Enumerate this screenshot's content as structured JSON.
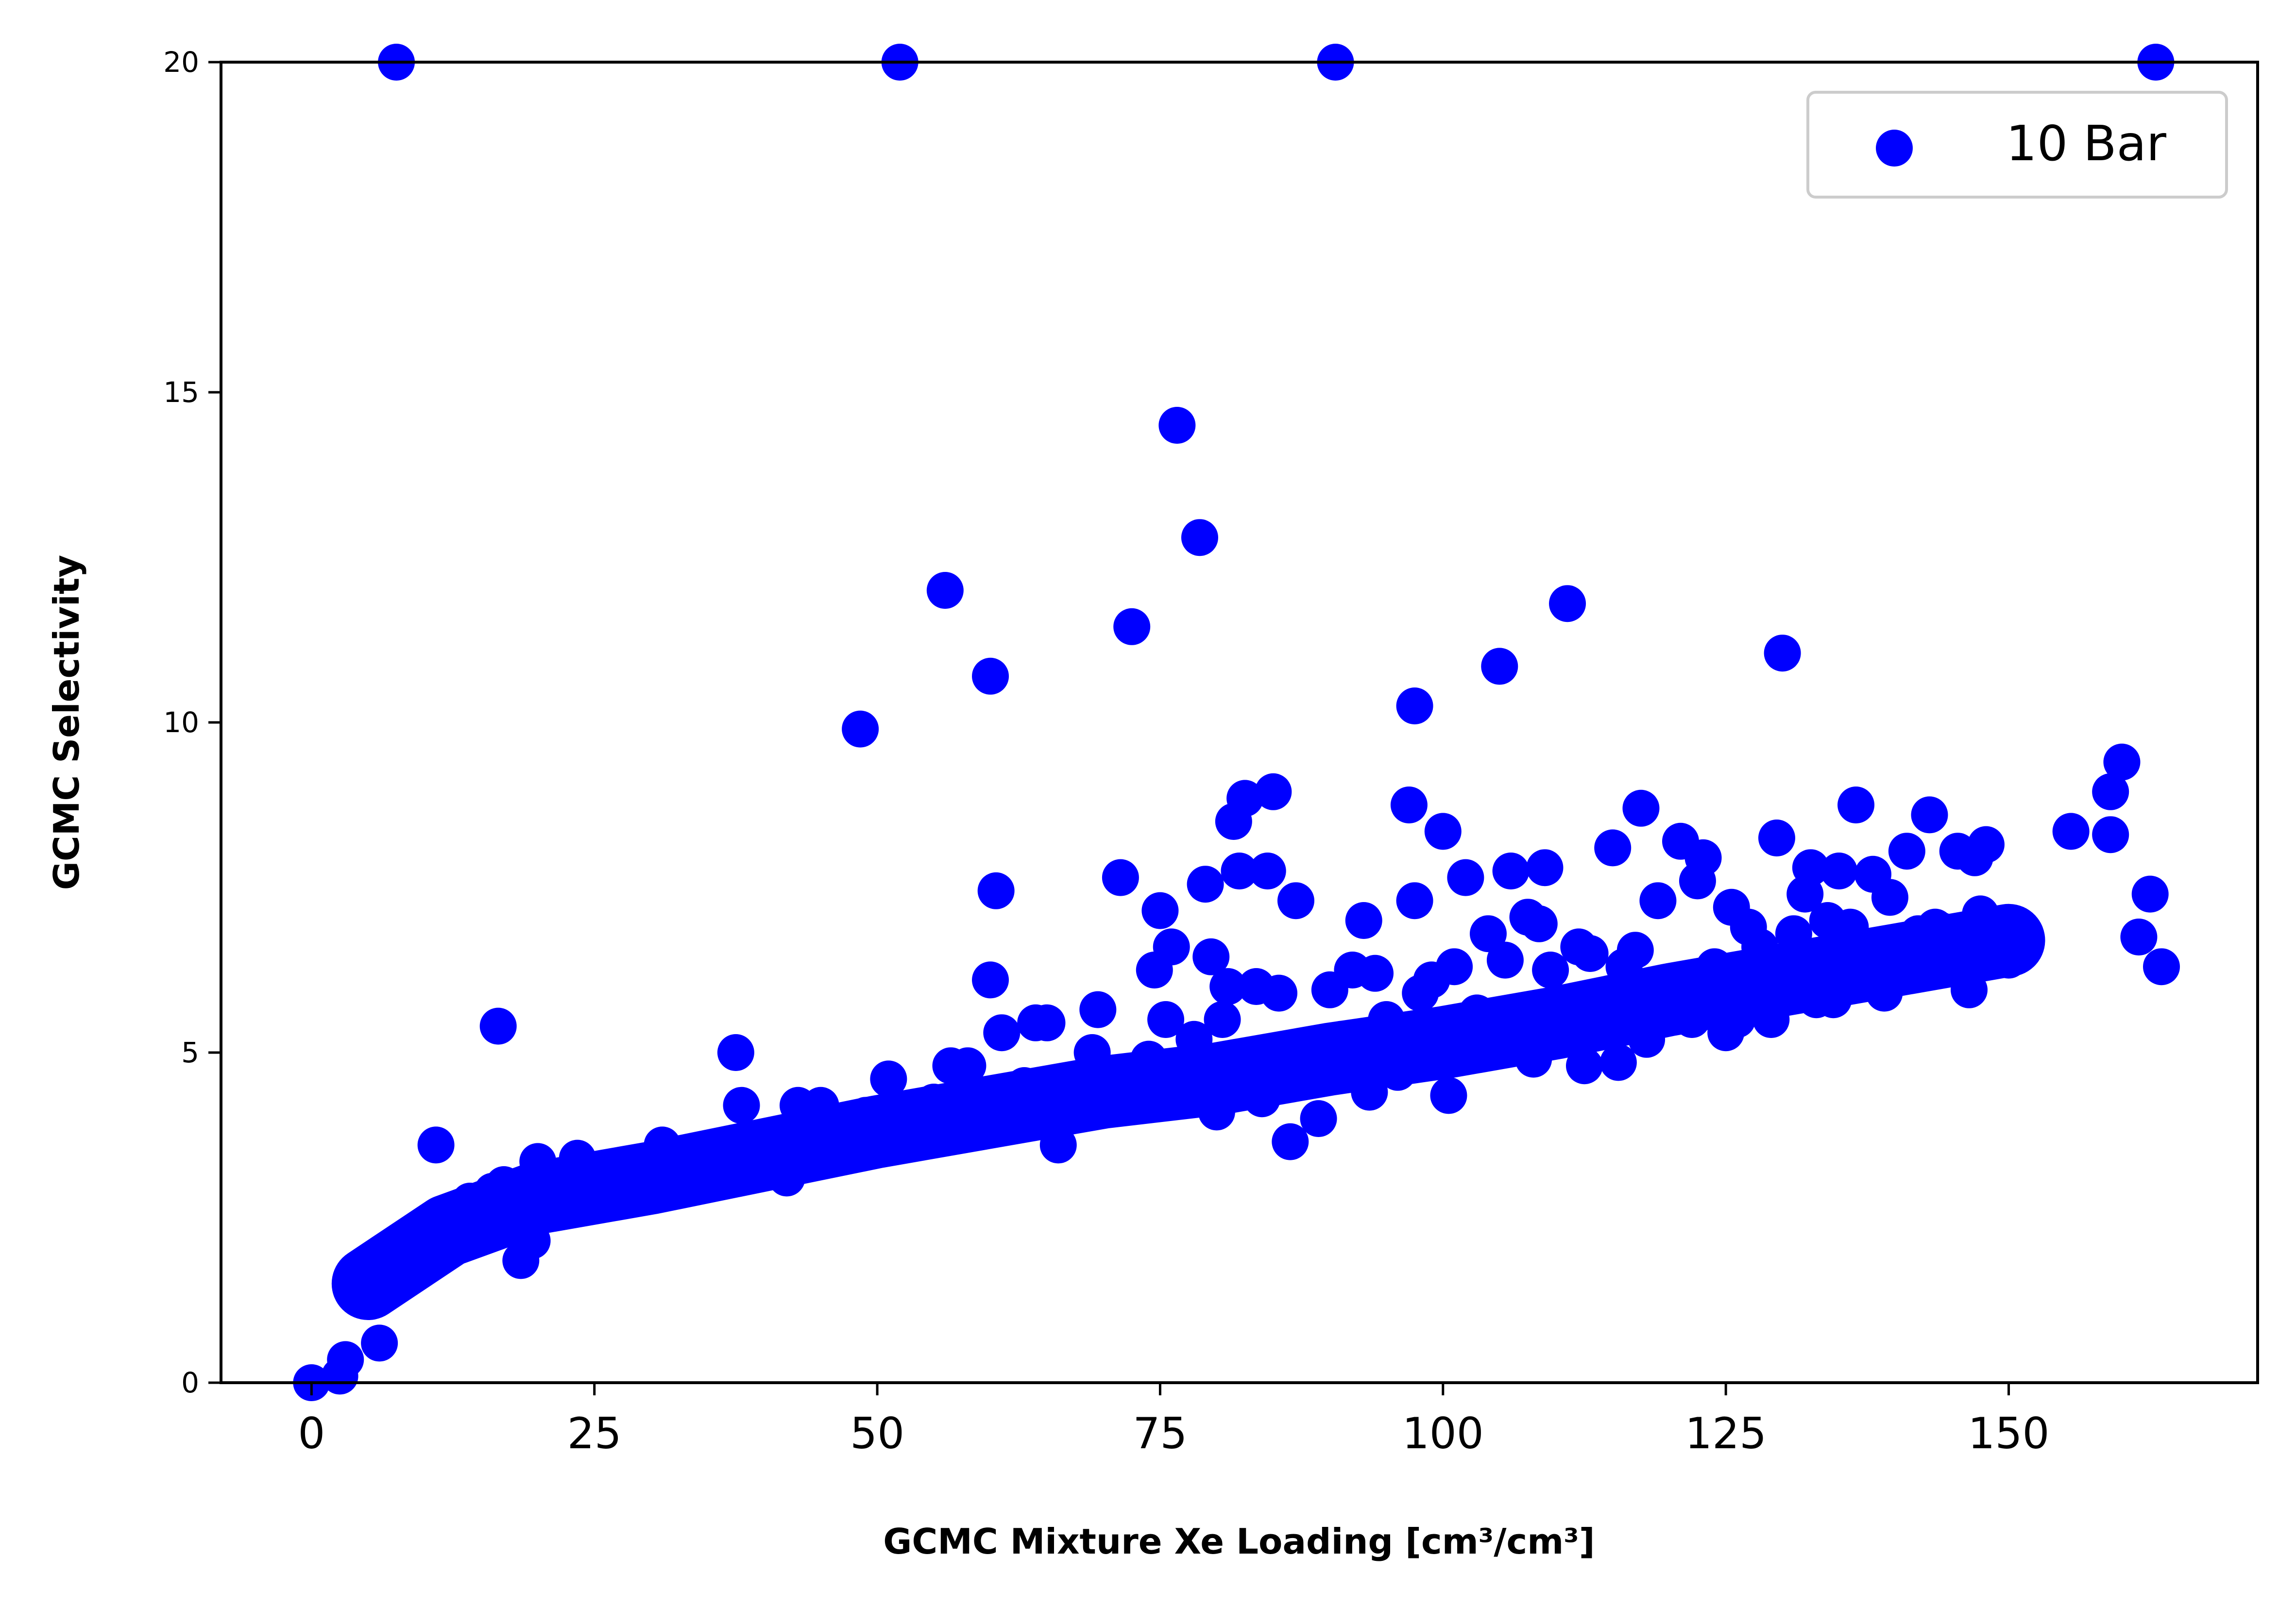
{
  "chart_data": {
    "type": "scatter",
    "title": "",
    "xlabel": "GCMC Mixture Xe Loading [cm³/cm³]",
    "ylabel": "GCMC Selectivity",
    "xlim": [
      -8,
      172
    ],
    "ylim": [
      0,
      20
    ],
    "x_ticks": [
      0,
      25,
      50,
      75,
      100,
      125,
      150
    ],
    "x_tick_labels": [
      "0",
      "25",
      "50",
      "75",
      "100",
      "125",
      "150"
    ],
    "y_ticks": [
      0,
      5,
      10,
      15,
      20
    ],
    "y_tick_labels": [
      "0",
      "5",
      "10",
      "15",
      "20"
    ],
    "grid": false,
    "legend_position": "top-right",
    "marker_color": "#0000ff",
    "series": [
      {
        "name": "10 Bar",
        "points": [
          [
            0,
            0
          ],
          [
            2.5,
            0.1
          ],
          [
            3,
            0.35
          ],
          [
            6,
            0.6
          ],
          [
            5,
            1.45
          ],
          [
            7,
            1.65
          ],
          [
            8,
            1.9
          ],
          [
            9,
            2.05
          ],
          [
            10,
            2.2
          ],
          [
            11,
            3.6
          ],
          [
            12,
            2.3
          ],
          [
            13,
            2.5
          ],
          [
            14,
            2.75
          ],
          [
            15,
            2.5
          ],
          [
            16,
            2.9
          ],
          [
            16.5,
            5.4
          ],
          [
            17,
            3.0
          ],
          [
            18,
            2.4
          ],
          [
            18.5,
            1.85
          ],
          [
            19.5,
            2.15
          ],
          [
            20,
            3.35
          ],
          [
            21,
            2.9
          ],
          [
            22,
            2.7
          ],
          [
            23.5,
            3.4
          ],
          [
            24,
            2.9
          ],
          [
            25,
            2.95
          ],
          [
            26,
            2.85
          ],
          [
            27,
            3.25
          ],
          [
            28,
            3.0
          ],
          [
            29,
            3.2
          ],
          [
            30,
            3.05
          ],
          [
            31,
            3.6
          ],
          [
            32,
            3.15
          ],
          [
            33,
            3.3
          ],
          [
            34,
            3.45
          ],
          [
            35,
            3.55
          ],
          [
            36,
            3.3
          ],
          [
            37.5,
            5.0
          ],
          [
            38,
            4.2
          ],
          [
            39,
            3.4
          ],
          [
            40,
            3.6
          ],
          [
            41,
            3.5
          ],
          [
            42,
            3.1
          ],
          [
            43,
            4.2
          ],
          [
            44,
            3.7
          ],
          [
            45,
            4.2
          ],
          [
            46,
            3.6
          ],
          [
            47,
            3.9
          ],
          [
            48,
            3.7
          ],
          [
            48.5,
            9.9
          ],
          [
            49,
            4.05
          ],
          [
            50,
            3.75
          ],
          [
            51,
            4.6
          ],
          [
            52,
            20
          ],
          [
            53,
            4.1
          ],
          [
            54,
            3.85
          ],
          [
            55,
            4.25
          ],
          [
            56,
            12.0
          ],
          [
            56.5,
            4.8
          ],
          [
            57,
            4.1
          ],
          [
            58,
            4.8
          ],
          [
            59,
            4.2
          ],
          [
            60,
            10.7
          ],
          [
            60,
            6.1
          ],
          [
            60.5,
            7.45
          ],
          [
            61,
            5.3
          ],
          [
            62,
            4.3
          ],
          [
            63,
            4.5
          ],
          [
            64,
            5.45
          ],
          [
            65,
            5.45
          ],
          [
            66,
            3.6
          ],
          [
            67,
            4.35
          ],
          [
            68,
            4.5
          ],
          [
            69,
            5.0
          ],
          [
            69.5,
            5.65
          ],
          [
            70,
            4.2
          ],
          [
            71,
            4.4
          ],
          [
            71.5,
            7.65
          ],
          [
            72,
            4.5
          ],
          [
            72.5,
            11.45
          ],
          [
            73,
            4.6
          ],
          [
            74,
            4.9
          ],
          [
            74.5,
            6.25
          ],
          [
            75,
            7.15
          ],
          [
            75.5,
            5.5
          ],
          [
            76,
            6.6
          ],
          [
            76.5,
            14.5
          ],
          [
            77,
            4.6
          ],
          [
            78,
            5.2
          ],
          [
            78.5,
            12.8
          ],
          [
            79,
            7.55
          ],
          [
            79.5,
            6.45
          ],
          [
            80,
            4.1
          ],
          [
            80.5,
            5.5
          ],
          [
            81,
            6.0
          ],
          [
            81.5,
            8.5
          ],
          [
            82,
            7.75
          ],
          [
            82.5,
            8.85
          ],
          [
            83,
            4.9
          ],
          [
            83.5,
            6.0
          ],
          [
            84,
            4.3
          ],
          [
            84.5,
            7.75
          ],
          [
            85,
            8.95
          ],
          [
            85.5,
            5.9
          ],
          [
            86,
            4.7
          ],
          [
            86.5,
            3.65
          ],
          [
            87,
            7.3
          ],
          [
            88,
            5.0
          ],
          [
            89,
            4.0
          ],
          [
            90,
            5.95
          ],
          [
            90.5,
            20
          ],
          [
            91,
            5.2
          ],
          [
            92,
            6.25
          ],
          [
            93,
            7.0
          ],
          [
            93.5,
            4.4
          ],
          [
            94,
            6.2
          ],
          [
            95,
            5.5
          ],
          [
            96,
            4.7
          ],
          [
            97,
            8.75
          ],
          [
            97.5,
            10.25
          ],
          [
            97.5,
            7.3
          ],
          [
            98,
            5.9
          ],
          [
            99,
            6.1
          ],
          [
            100,
            8.35
          ],
          [
            100.5,
            4.35
          ],
          [
            101,
            6.3
          ],
          [
            102,
            7.65
          ],
          [
            103,
            5.6
          ],
          [
            104,
            6.8
          ],
          [
            105,
            10.85
          ],
          [
            105.5,
            6.4
          ],
          [
            106,
            7.75
          ],
          [
            107,
            5.4
          ],
          [
            107.5,
            7.05
          ],
          [
            108,
            4.9
          ],
          [
            108.5,
            6.95
          ],
          [
            109,
            7.8
          ],
          [
            109.5,
            6.25
          ],
          [
            110,
            5.7
          ],
          [
            111,
            11.8
          ],
          [
            112,
            6.6
          ],
          [
            112.5,
            4.8
          ],
          [
            113,
            6.5
          ],
          [
            114,
            5.8
          ],
          [
            115,
            8.1
          ],
          [
            115.5,
            4.85
          ],
          [
            116,
            6.3
          ],
          [
            117,
            6.55
          ],
          [
            117.5,
            8.7
          ],
          [
            118,
            5.2
          ],
          [
            119,
            7.3
          ],
          [
            120,
            5.8
          ],
          [
            121,
            8.2
          ],
          [
            122,
            5.5
          ],
          [
            122.5,
            7.6
          ],
          [
            123,
            7.95
          ],
          [
            124,
            6.3
          ],
          [
            125,
            5.3
          ],
          [
            125.5,
            7.2
          ],
          [
            126,
            5.5
          ],
          [
            127,
            6.9
          ],
          [
            128,
            6.6
          ],
          [
            129,
            5.5
          ],
          [
            129.5,
            8.25
          ],
          [
            130,
            11.05
          ],
          [
            130.5,
            6.2
          ],
          [
            131,
            6.8
          ],
          [
            132,
            7.4
          ],
          [
            132.5,
            7.8
          ],
          [
            133,
            5.8
          ],
          [
            134,
            7.0
          ],
          [
            134.5,
            5.8
          ],
          [
            135,
            7.75
          ],
          [
            136,
            6.9
          ],
          [
            136.5,
            8.75
          ],
          [
            137,
            6.6
          ],
          [
            138,
            7.7
          ],
          [
            139,
            5.9
          ],
          [
            139.5,
            7.35
          ],
          [
            140,
            6.5
          ],
          [
            141,
            8.05
          ],
          [
            142,
            6.8
          ],
          [
            143,
            8.6
          ],
          [
            143.5,
            6.9
          ],
          [
            144,
            6.85
          ],
          [
            145,
            6.6
          ],
          [
            145.5,
            8.05
          ],
          [
            146.5,
            5.95
          ],
          [
            147,
            7.95
          ],
          [
            147.5,
            7.1
          ],
          [
            148,
            8.15
          ],
          [
            149,
            6.9
          ],
          [
            150,
            6.8
          ],
          [
            150,
            6.4
          ],
          [
            155.5,
            8.35
          ],
          [
            159,
            8.95
          ],
          [
            159,
            8.3
          ],
          [
            160,
            9.4
          ],
          [
            161.5,
            6.75
          ],
          [
            162.5,
            7.4
          ],
          [
            163,
            20
          ],
          [
            163.5,
            6.3
          ],
          [
            7.5,
            20
          ]
        ]
      }
    ]
  }
}
